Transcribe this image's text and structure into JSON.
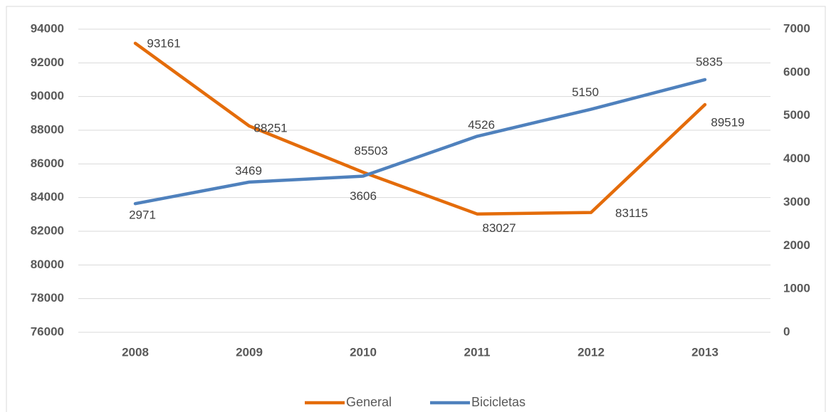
{
  "chart_data": {
    "type": "line",
    "categories": [
      "2008",
      "2009",
      "2010",
      "2011",
      "2012",
      "2013"
    ],
    "series": [
      {
        "name": "General",
        "color": "#e46c0a",
        "values": [
          93161,
          88251,
          85503,
          83027,
          83115,
          89519
        ]
      },
      {
        "name": "Bicicletas",
        "color": "#4f81bd",
        "axis": "y2",
        "values": [
          2971,
          3469,
          3606,
          4526,
          5150,
          5835
        ]
      }
    ],
    "ylim": [
      76000,
      94000
    ],
    "yticks": [
      76000,
      78000,
      80000,
      82000,
      84000,
      86000,
      88000,
      90000,
      92000,
      94000
    ],
    "y2lim": [
      0,
      7000
    ],
    "y2ticks": [
      0,
      1000,
      2000,
      3000,
      4000,
      5000,
      6000,
      7000
    ],
    "grid": true,
    "legend": "bottom"
  }
}
